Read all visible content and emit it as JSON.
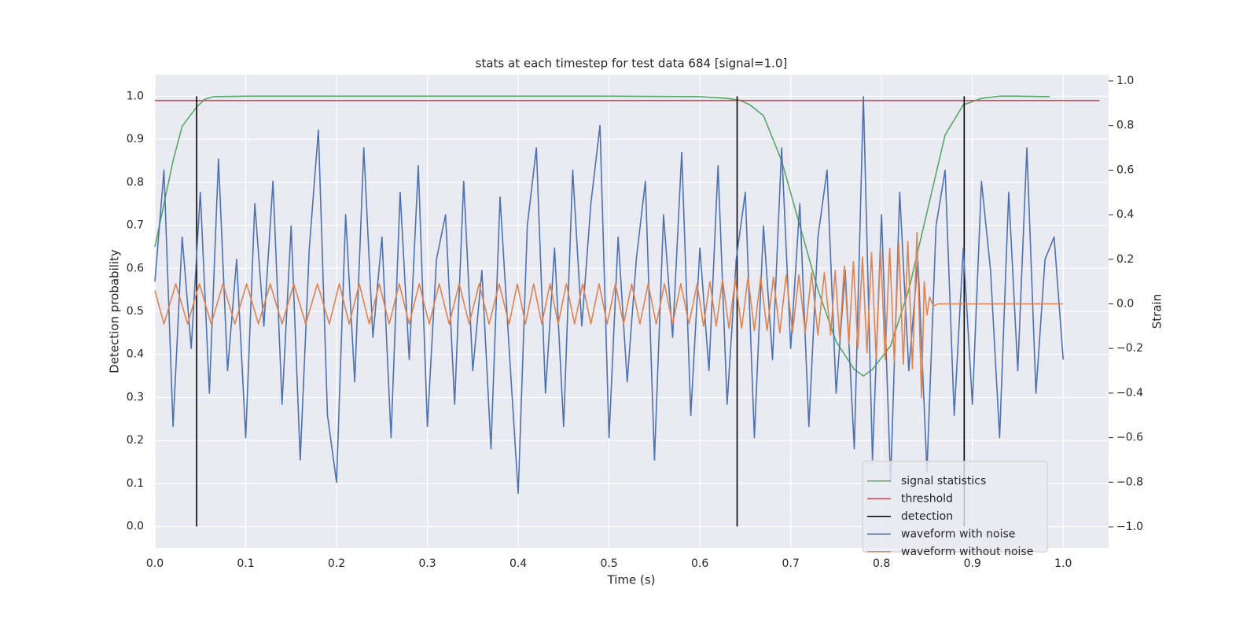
{
  "chart_data": {
    "type": "line",
    "title": "stats at each timestep for test data 684 [signal=1.0]",
    "xlabel": "Time (s)",
    "ylabel": "Detection probability",
    "y2label": "Strain",
    "xlim": [
      0,
      1.05
    ],
    "ylim": [
      -0.05,
      1.05
    ],
    "y2lim": [
      -1.095,
      1.028
    ],
    "xticks": [
      {
        "value": 0,
        "label": "0.0"
      },
      0.1,
      0.2,
      0.3,
      0.4,
      0.5,
      0.6,
      0.7,
      0.8,
      0.9,
      {
        "value": 1,
        "label": "1.0"
      }
    ],
    "yticks": [
      {
        "value": 0,
        "label": "0.0"
      },
      0.1,
      0.2,
      0.3,
      0.4,
      0.5,
      0.6,
      0.7,
      0.8,
      0.9,
      {
        "value": 1,
        "label": "1.0"
      }
    ],
    "y2ticks": [
      {
        "value": -1,
        "label": "−1.0"
      },
      {
        "value": -0.8,
        "label": "−0.8"
      },
      {
        "value": -0.6,
        "label": "−0.6"
      },
      {
        "value": -0.4,
        "label": "−0.4"
      },
      {
        "value": -0.2,
        "label": "−0.2"
      },
      {
        "value": 0,
        "label": "0.0"
      },
      0.2,
      0.4,
      0.6,
      0.8,
      {
        "value": 1,
        "label": "1.0"
      }
    ],
    "grid": true,
    "legend": "lower right",
    "series": [
      {
        "name": "signal statistics",
        "color": "#55a868",
        "axis": "y",
        "x": [
          0,
          0.01,
          0.02,
          0.03,
          0.046,
          0.055,
          0.065,
          0.1,
          0.3,
          0.5,
          0.6,
          0.63,
          0.645,
          0.655,
          0.67,
          0.69,
          0.71,
          0.73,
          0.75,
          0.77,
          0.78,
          0.79,
          0.81,
          0.83,
          0.85,
          0.87,
          0.89,
          0.91,
          0.93,
          0.95,
          0.985
        ],
        "values": [
          0.65,
          0.75,
          0.85,
          0.93,
          0.975,
          0.993,
          0.999,
          1.0,
          1.0,
          1.0,
          0.999,
          0.995,
          0.99,
          0.98,
          0.955,
          0.85,
          0.7,
          0.55,
          0.43,
          0.365,
          0.35,
          0.365,
          0.42,
          0.55,
          0.73,
          0.91,
          0.98,
          0.995,
          1.0,
          1.0,
          0.999
        ]
      },
      {
        "name": "threshold",
        "color": "#c44e52",
        "axis": "y",
        "x": [
          0,
          1.04
        ],
        "values": [
          0.99,
          0.99
        ]
      },
      {
        "name": "detection",
        "color": "#000000",
        "axis": "y",
        "x": [
          0.046,
          0.046,
          0.046,
          0.641,
          0.641,
          0.641,
          0.891,
          0.891
        ],
        "values": [
          0,
          1,
          null,
          0,
          1,
          null,
          0,
          1
        ]
      },
      {
        "name": "waveform with noise",
        "color": "#4c72b0",
        "axis": "y2",
        "x": [
          0,
          0.01,
          0.02,
          0.03,
          0.04,
          0.05,
          0.06,
          0.07,
          0.08,
          0.09,
          0.1,
          0.11,
          0.12,
          0.13,
          0.14,
          0.15,
          0.16,
          0.17,
          0.18,
          0.19,
          0.2,
          0.21,
          0.22,
          0.23,
          0.24,
          0.25,
          0.26,
          0.27,
          0.28,
          0.29,
          0.3,
          0.31,
          0.32,
          0.33,
          0.34,
          0.35,
          0.36,
          0.37,
          0.38,
          0.39,
          0.4,
          0.41,
          0.42,
          0.43,
          0.44,
          0.45,
          0.46,
          0.47,
          0.48,
          0.49,
          0.5,
          0.51,
          0.52,
          0.53,
          0.54,
          0.55,
          0.56,
          0.57,
          0.58,
          0.59,
          0.6,
          0.61,
          0.62,
          0.63,
          0.64,
          0.65,
          0.66,
          0.67,
          0.68,
          0.69,
          0.7,
          0.71,
          0.72,
          0.73,
          0.74,
          0.75,
          0.76,
          0.77,
          0.78,
          0.79,
          0.8,
          0.81,
          0.82,
          0.83,
          0.84,
          0.85,
          0.86,
          0.87,
          0.88,
          0.89,
          0.9,
          0.91,
          0.92,
          0.93,
          0.94,
          0.95,
          0.96,
          0.97,
          0.98,
          0.99,
          1.0
        ],
        "values": [
          0.1,
          0.6,
          -0.55,
          0.3,
          -0.2,
          0.5,
          -0.4,
          0.65,
          -0.3,
          0.2,
          -0.6,
          0.45,
          -0.1,
          0.55,
          -0.45,
          0.35,
          -0.7,
          0.25,
          0.78,
          -0.5,
          -0.8,
          0.4,
          -0.35,
          0.7,
          -0.15,
          0.3,
          -0.6,
          0.5,
          -0.25,
          0.62,
          -0.55,
          0.2,
          0.4,
          -0.45,
          0.55,
          -0.3,
          0.15,
          -0.65,
          0.48,
          -0.2,
          -0.85,
          0.35,
          0.7,
          -0.4,
          0.25,
          -0.55,
          0.6,
          -0.1,
          0.45,
          0.8,
          -0.6,
          0.3,
          -0.35,
          0.2,
          0.55,
          -0.7,
          0.4,
          -0.15,
          0.68,
          -0.5,
          0.25,
          -0.3,
          0.62,
          -0.45,
          0.2,
          0.5,
          -0.6,
          0.35,
          -0.25,
          0.7,
          -0.2,
          0.45,
          -0.55,
          0.3,
          0.6,
          -0.4,
          0.15,
          -0.65,
          0.93,
          -0.7,
          0.4,
          -0.8,
          0.5,
          -0.3,
          0.2,
          -0.75,
          0.35,
          0.6,
          -0.5,
          0.25,
          -0.45,
          0.55,
          0.15,
          -0.6,
          0.5,
          -0.3,
          0.7,
          -0.4,
          0.2,
          0.3,
          -0.25
        ]
      },
      {
        "name": "waveform without noise",
        "color": "#dd8452",
        "axis": "y2",
        "x": [
          0,
          0.01,
          0.023,
          0.036,
          0.049,
          0.062,
          0.075,
          0.088,
          0.101,
          0.114,
          0.127,
          0.14,
          0.153,
          0.166,
          0.179,
          0.192,
          0.203,
          0.214,
          0.225,
          0.236,
          0.247,
          0.258,
          0.269,
          0.28,
          0.291,
          0.302,
          0.313,
          0.324,
          0.335,
          0.346,
          0.357,
          0.368,
          0.379,
          0.39,
          0.399,
          0.408,
          0.417,
          0.426,
          0.435,
          0.444,
          0.453,
          0.462,
          0.471,
          0.48,
          0.489,
          0.498,
          0.507,
          0.516,
          0.525,
          0.534,
          0.543,
          0.552,
          0.561,
          0.57,
          0.579,
          0.588,
          0.597,
          0.604,
          0.611,
          0.618,
          0.625,
          0.632,
          0.639,
          0.646,
          0.653,
          0.66,
          0.667,
          0.674,
          0.681,
          0.688,
          0.695,
          0.702,
          0.709,
          0.716,
          0.723,
          0.73,
          0.737,
          0.744,
          0.749,
          0.754,
          0.759,
          0.764,
          0.769,
          0.774,
          0.779,
          0.784,
          0.789,
          0.794,
          0.799,
          0.804,
          0.809,
          0.814,
          0.819,
          0.824,
          0.829,
          0.834,
          0.839,
          0.844,
          0.847,
          0.85,
          0.853,
          0.857,
          0.862,
          1.0
        ],
        "values": [
          0.06,
          -0.09,
          0.09,
          -0.09,
          0.09,
          -0.09,
          0.09,
          -0.09,
          0.09,
          -0.09,
          0.09,
          -0.09,
          0.09,
          -0.09,
          0.09,
          -0.09,
          0.09,
          -0.09,
          0.09,
          -0.09,
          0.09,
          -0.09,
          0.09,
          -0.09,
          0.09,
          -0.09,
          0.09,
          -0.09,
          0.09,
          -0.09,
          0.09,
          -0.09,
          0.09,
          -0.09,
          0.09,
          -0.09,
          0.09,
          -0.09,
          0.09,
          -0.09,
          0.09,
          -0.09,
          0.09,
          -0.09,
          0.09,
          -0.09,
          0.09,
          -0.09,
          0.09,
          -0.09,
          0.09,
          -0.09,
          0.09,
          -0.09,
          0.09,
          -0.09,
          0.09,
          -0.1,
          0.1,
          -0.1,
          0.11,
          -0.11,
          0.11,
          -0.11,
          0.12,
          -0.12,
          0.12,
          -0.12,
          0.12,
          -0.13,
          0.13,
          -0.13,
          0.13,
          -0.13,
          0.14,
          -0.14,
          0.14,
          -0.14,
          0.15,
          -0.16,
          0.17,
          -0.18,
          0.19,
          -0.2,
          0.21,
          -0.22,
          0.23,
          -0.24,
          0.24,
          -0.25,
          0.25,
          -0.26,
          0.27,
          -0.27,
          0.28,
          -0.29,
          0.32,
          -0.42,
          0.1,
          -0.05,
          0.03,
          -0.01,
          0,
          0
        ]
      }
    ]
  }
}
